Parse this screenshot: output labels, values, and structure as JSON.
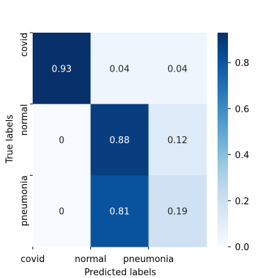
{
  "chart_data": {
    "type": "heatmap",
    "title": "",
    "xlabel": "Predicted labels",
    "ylabel": "True labels",
    "x_categories": [
      "covid",
      "normal",
      "pneumonia"
    ],
    "y_categories": [
      "covid",
      "normal",
      "pneumonia"
    ],
    "values": [
      [
        0.93,
        0.04,
        0.04
      ],
      [
        0,
        0.88,
        0.12
      ],
      [
        0,
        0.81,
        0.19
      ]
    ],
    "value_labels": [
      [
        "0.93",
        "0.04",
        "0.04"
      ],
      [
        "0",
        "0.88",
        "0.12"
      ],
      [
        "0",
        "0.81",
        "0.19"
      ]
    ],
    "colormap": "Blues",
    "colorbar": {
      "vmin": 0,
      "vmax": 0.93,
      "ticks": [
        0.0,
        0.2,
        0.4,
        0.6,
        0.8
      ],
      "tick_labels": [
        "0.0",
        "0.2",
        "0.4",
        "0.6",
        "0.8"
      ]
    },
    "grid": false,
    "legend": "none"
  },
  "colors": {
    "blues_low": "#f7fbff",
    "blues_high": "#08306b",
    "text_dark": "#262626",
    "text_light": "#ffffff",
    "axis": "#000000"
  }
}
